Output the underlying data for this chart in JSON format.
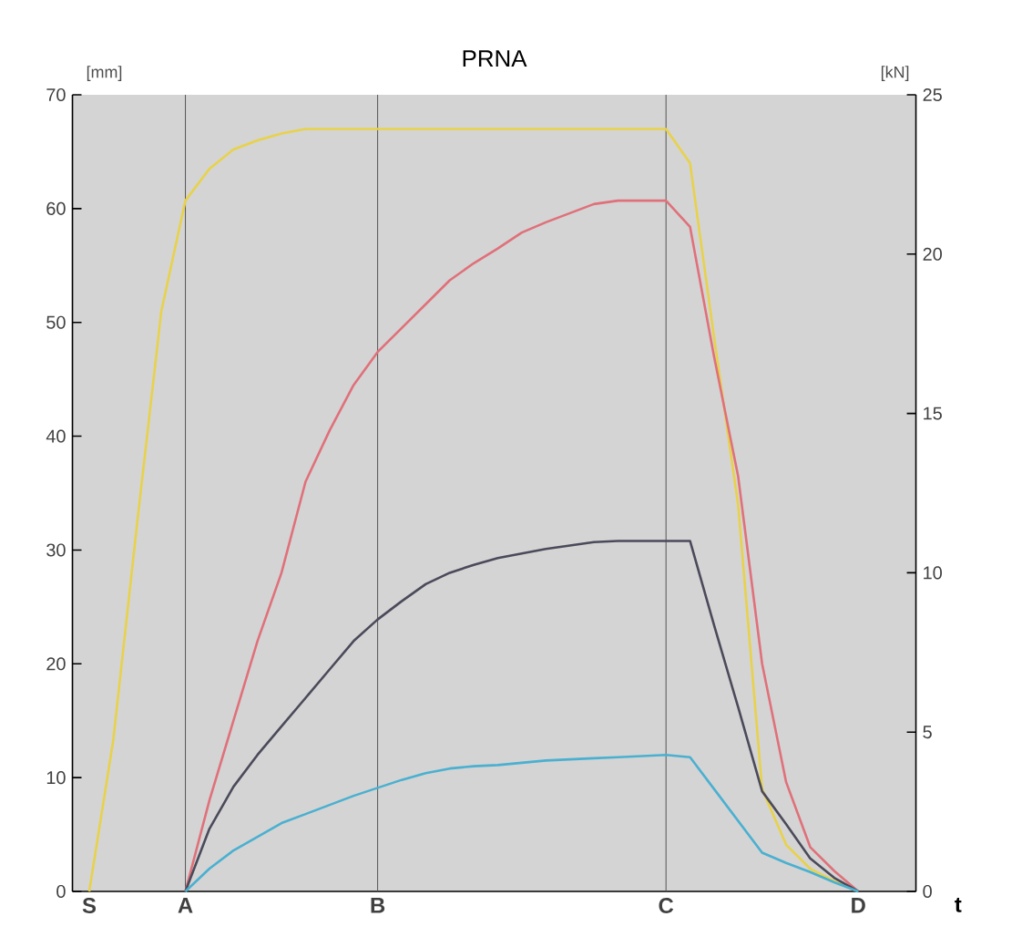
{
  "chart_data": {
    "type": "line",
    "title": "PRNA",
    "xlabel": "t",
    "ylabel": "[mm]",
    "y2label": "[kN]",
    "categories": [
      "S",
      null,
      null,
      null,
      "A",
      null,
      null,
      null,
      null,
      null,
      null,
      null,
      "B",
      null,
      null,
      null,
      null,
      null,
      null,
      null,
      null,
      null,
      null,
      null,
      "C",
      null,
      null,
      null,
      null,
      null,
      null,
      null,
      "D"
    ],
    "ylim": [
      0,
      70
    ],
    "y2lim": [
      0,
      25
    ],
    "yticks": [
      0,
      10,
      20,
      30,
      40,
      50,
      60,
      70
    ],
    "y2ticks": [
      0,
      5,
      10,
      15,
      20,
      25
    ],
    "ref_lines": [
      {
        "axis": "x",
        "value": "A",
        "color": "#555555"
      },
      {
        "axis": "x",
        "value": "B",
        "color": "#555555"
      },
      {
        "axis": "x",
        "value": "C",
        "color": "#555555"
      }
    ],
    "grid": false,
    "marker": "none",
    "line_style": "solid",
    "series": [
      {
        "color": "#e8d24a",
        "values": [
          0,
          13.3,
          32.5,
          51,
          60.7,
          63.5,
          65.2,
          66,
          66.6,
          67,
          67,
          67,
          67,
          67,
          67,
          67,
          67,
          67,
          67,
          67,
          67,
          67,
          67,
          67,
          67,
          64,
          48.7,
          34,
          9,
          4.1,
          2,
          0.9,
          0
        ]
      },
      {
        "color": "#e0707a",
        "values": [
          null,
          null,
          null,
          null,
          0,
          8,
          15,
          22,
          28,
          36,
          40.5,
          44.5,
          47.4,
          49.5,
          51.6,
          53.7,
          55.2,
          56.5,
          57.9,
          58.8,
          59.6,
          60.4,
          60.7,
          60.7,
          60.7,
          58.4,
          47,
          36.5,
          20,
          9.6,
          3.9,
          1.8,
          0
        ]
      },
      {
        "color": "#4a4a5a",
        "values": [
          null,
          null,
          null,
          null,
          0,
          5.5,
          9.2,
          12,
          14.5,
          17,
          19.5,
          22,
          23.9,
          25.5,
          27,
          28,
          28.7,
          29.3,
          29.7,
          30.1,
          30.4,
          30.7,
          30.8,
          30.8,
          30.8,
          30.8,
          23.4,
          16.2,
          8.8,
          5.9,
          2.9,
          1.2,
          0
        ]
      },
      {
        "color": "#4ab0d0",
        "values": [
          null,
          null,
          null,
          null,
          0,
          2,
          3.6,
          4.8,
          6,
          6.8,
          7.6,
          8.4,
          9.1,
          9.8,
          10.4,
          10.8,
          11,
          11.1,
          11.3,
          11.5,
          11.6,
          11.7,
          11.8,
          11.9,
          12,
          11.8,
          9,
          6.2,
          3.4,
          2.5,
          1.7,
          0.8,
          0
        ]
      }
    ]
  }
}
